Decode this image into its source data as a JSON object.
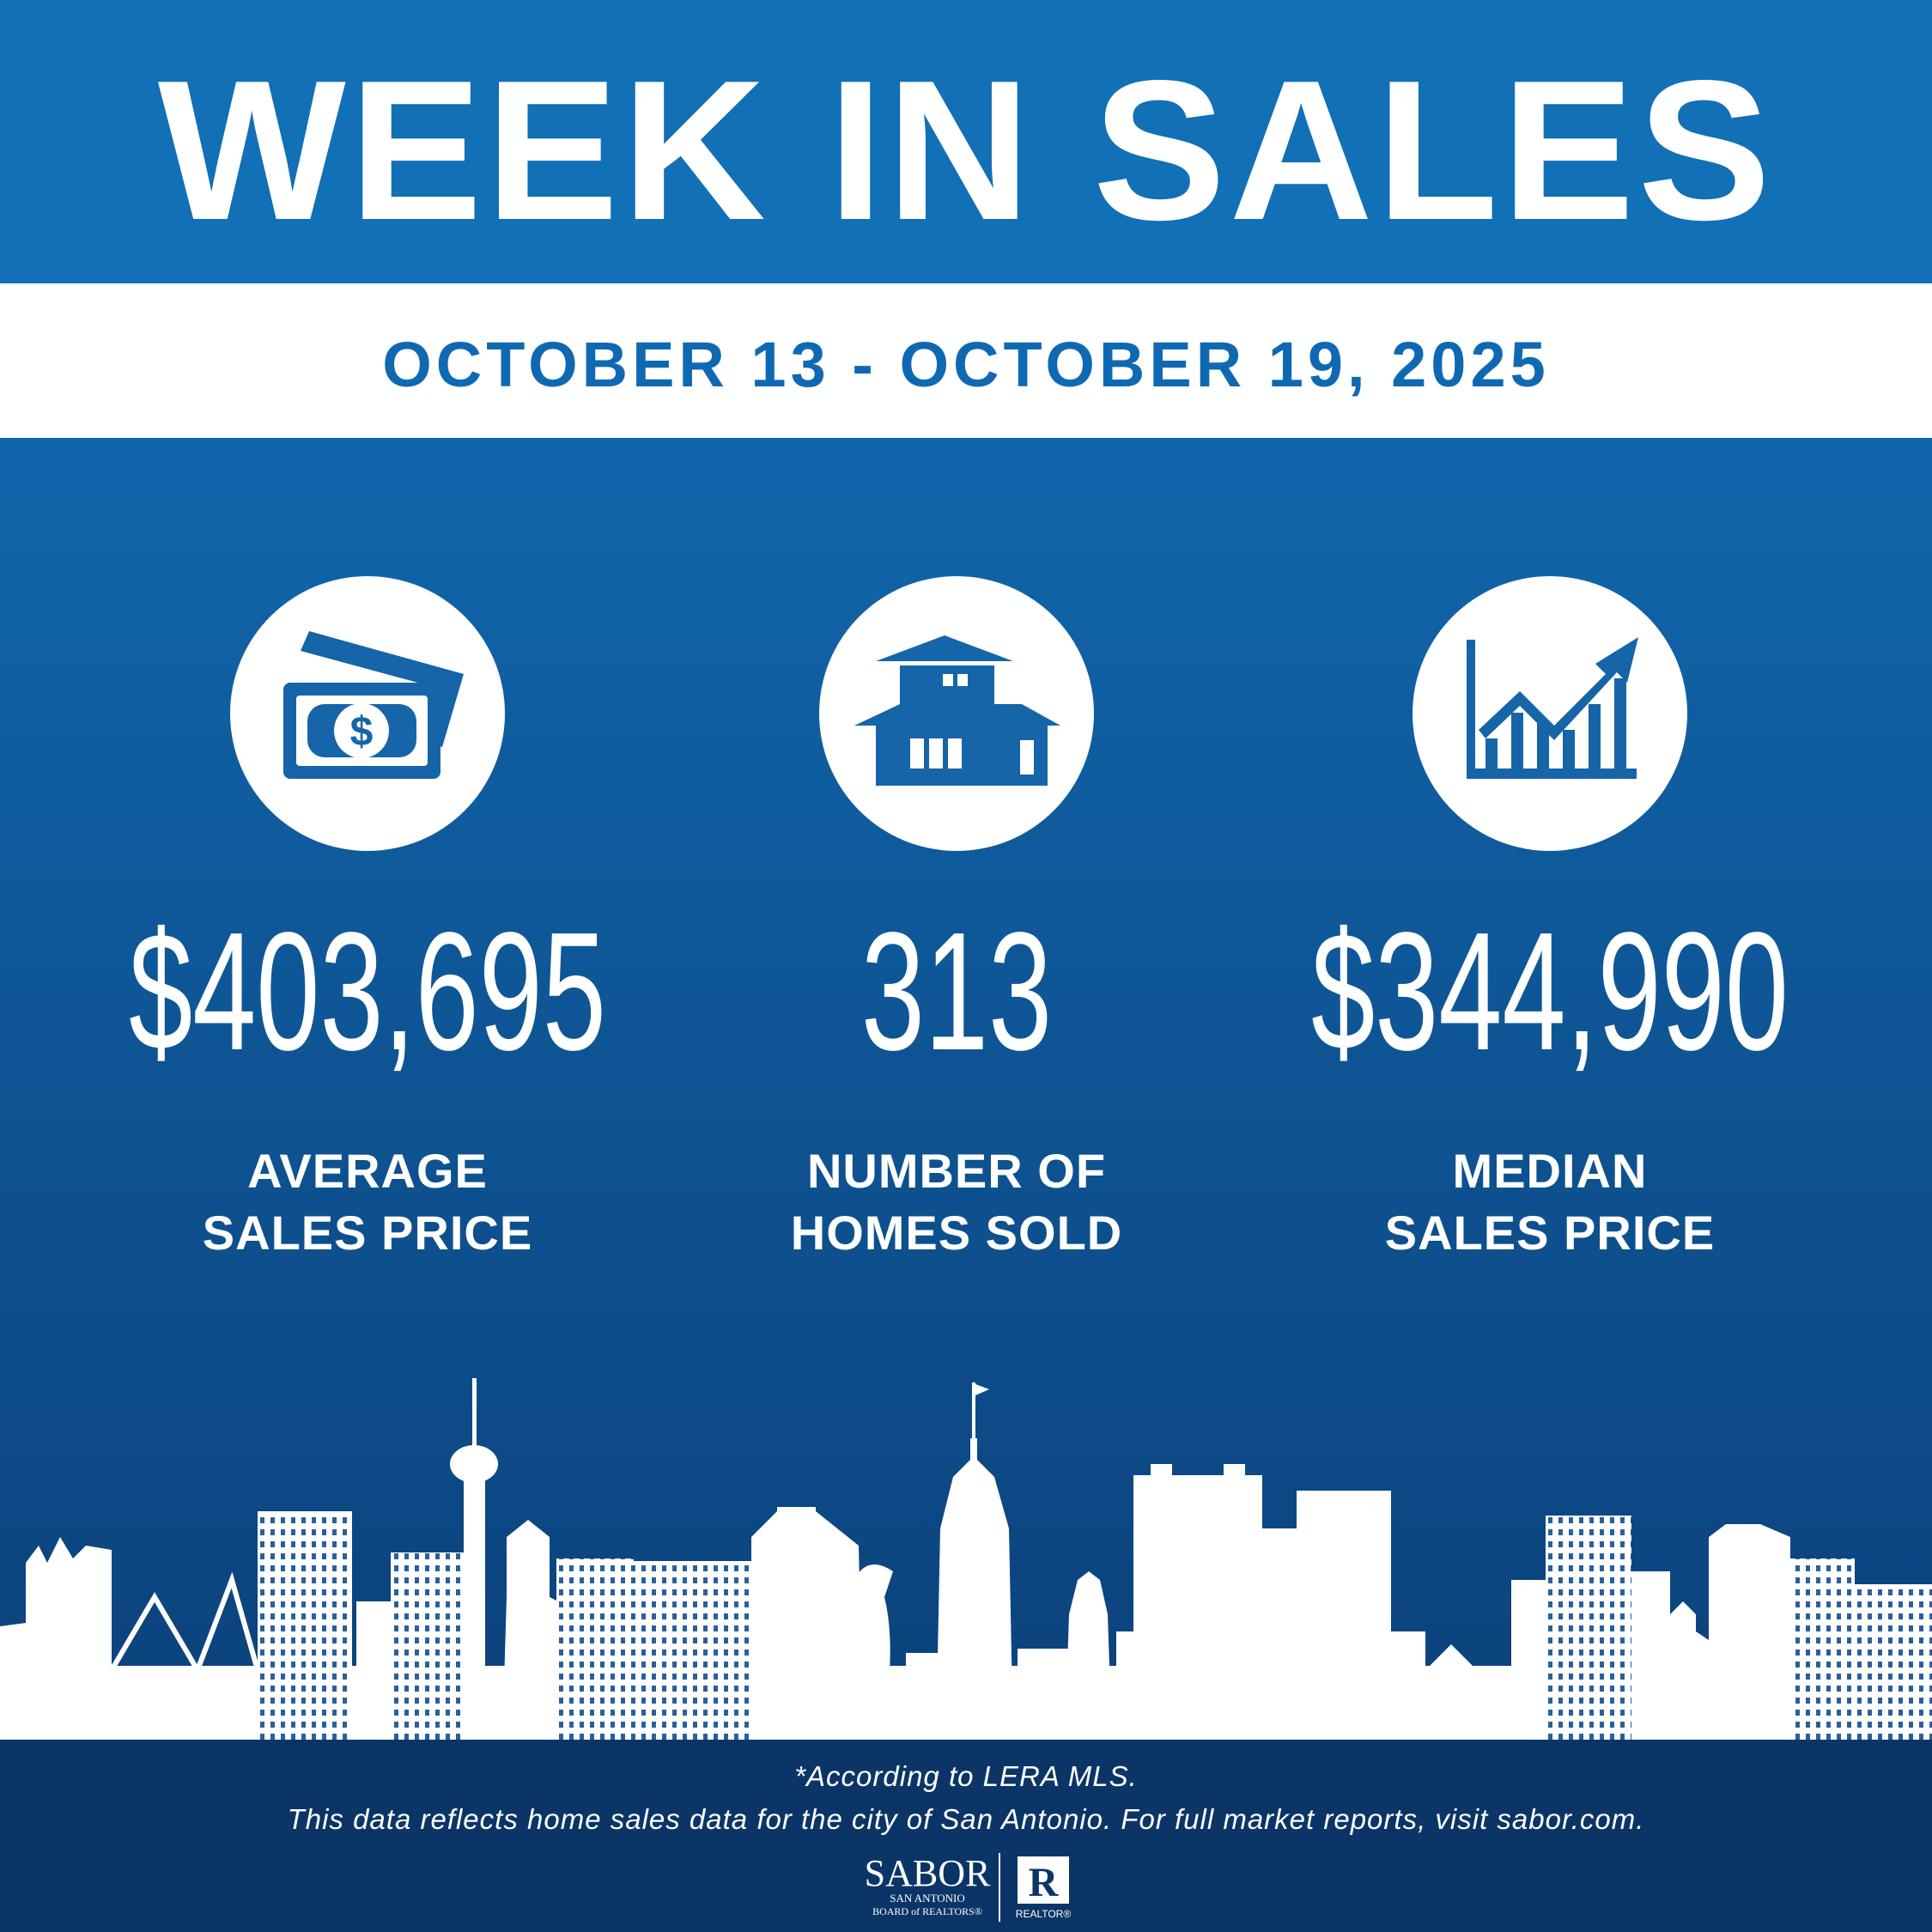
{
  "header": {
    "title": "WEEK IN SALES",
    "date_range": "OCTOBER 13 - OCTOBER 19, 2025"
  },
  "stats": [
    {
      "value": "$403,695",
      "label": [
        "AVERAGE",
        "SALES PRICE"
      ]
    },
    {
      "value": "313",
      "label": [
        "NUMBER OF",
        "HOMES SOLD"
      ]
    },
    {
      "value": "$344,990",
      "label": [
        "MEDIAN",
        "SALES PRICE"
      ]
    }
  ],
  "footer": {
    "note": "*According to LERA MLS.",
    "disclaimer": "This data reflects home sales data for the city of San Antonio. For full market reports, visit sabor.com."
  },
  "logo": {
    "name": "SABOR",
    "line1": "SAN ANTONIO",
    "line2": "BOARD of REALTORS®",
    "mark": "R",
    "realtor": "REALTOR®"
  }
}
